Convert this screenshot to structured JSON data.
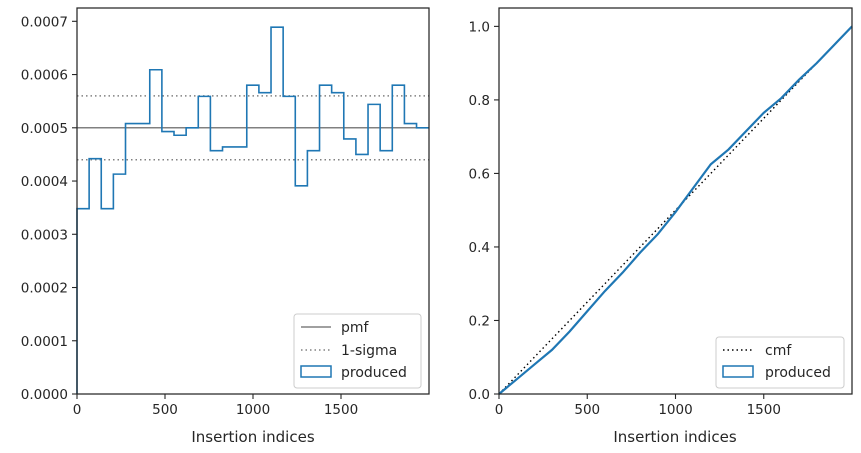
{
  "chart_data": [
    {
      "type": "step",
      "xlabel": "Insertion indices",
      "ylabel": "",
      "xlim": [
        0,
        2000
      ],
      "ylim": [
        0,
        0.000725
      ],
      "xticks": [
        0,
        500,
        1000,
        1500
      ],
      "yticks": [
        0.0,
        0.0001,
        0.0002,
        0.0003,
        0.0004,
        0.0005,
        0.0006,
        0.0007
      ],
      "ytick_labels": [
        "0.0000",
        "0.0001",
        "0.0002",
        "0.0003",
        "0.0004",
        "0.0005",
        "0.0006",
        "0.0007"
      ],
      "grid": false,
      "legend_position": "lower-right",
      "reference_lines": [
        {
          "name": "pmf",
          "y": 0.0005,
          "style": "solid",
          "color": "#808080"
        },
        {
          "name": "1-sigma",
          "y": 0.00056,
          "style": "dotted",
          "color": "#808080"
        },
        {
          "name": "1-sigma",
          "y": 0.00044,
          "style": "dotted",
          "color": "#808080"
        }
      ],
      "series": [
        {
          "name": "produced",
          "color": "#1f77b4",
          "bin_width": 68.9,
          "values": [
            0.000348,
            0.000442,
            0.000348,
            0.000413,
            0.000508,
            0.000508,
            0.000609,
            0.000493,
            0.000486,
            0.0005,
            0.000559,
            0.000457,
            0.000464,
            0.000464,
            0.00058,
            0.000566,
            0.000689,
            0.000559,
            0.000391,
            0.000457,
            0.00058,
            0.000566,
            0.000479,
            0.00045,
            0.000544,
            0.000457,
            0.00058,
            0.000508,
            0.0005
          ]
        }
      ],
      "legend": [
        "pmf",
        "1-sigma",
        "produced"
      ]
    },
    {
      "type": "line",
      "xlabel": "Insertion indices",
      "ylabel": "",
      "xlim": [
        0,
        2000
      ],
      "ylim": [
        0,
        1.05
      ],
      "xticks": [
        0,
        500,
        1000,
        1500
      ],
      "yticks": [
        0.0,
        0.2,
        0.4,
        0.6,
        0.8,
        1.0
      ],
      "ytick_labels": [
        "0.0",
        "0.2",
        "0.4",
        "0.6",
        "0.8",
        "1.0"
      ],
      "grid": false,
      "legend_position": "lower-right",
      "series": [
        {
          "name": "cmf",
          "style": "dotted",
          "color": "#000000",
          "x": [
            0,
            2000
          ],
          "y": [
            0,
            1
          ]
        },
        {
          "name": "produced",
          "color": "#1f77b4",
          "x": [
            0,
            100,
            200,
            300,
            400,
            500,
            600,
            700,
            800,
            900,
            1000,
            1100,
            1200,
            1300,
            1400,
            1500,
            1600,
            1700,
            1800,
            1900,
            2000
          ],
          "y": [
            0,
            0.04,
            0.08,
            0.12,
            0.17,
            0.225,
            0.28,
            0.33,
            0.385,
            0.435,
            0.495,
            0.56,
            0.625,
            0.665,
            0.715,
            0.765,
            0.805,
            0.855,
            0.9,
            0.95,
            1.0
          ]
        }
      ],
      "legend": [
        "cmf",
        "produced"
      ]
    }
  ]
}
